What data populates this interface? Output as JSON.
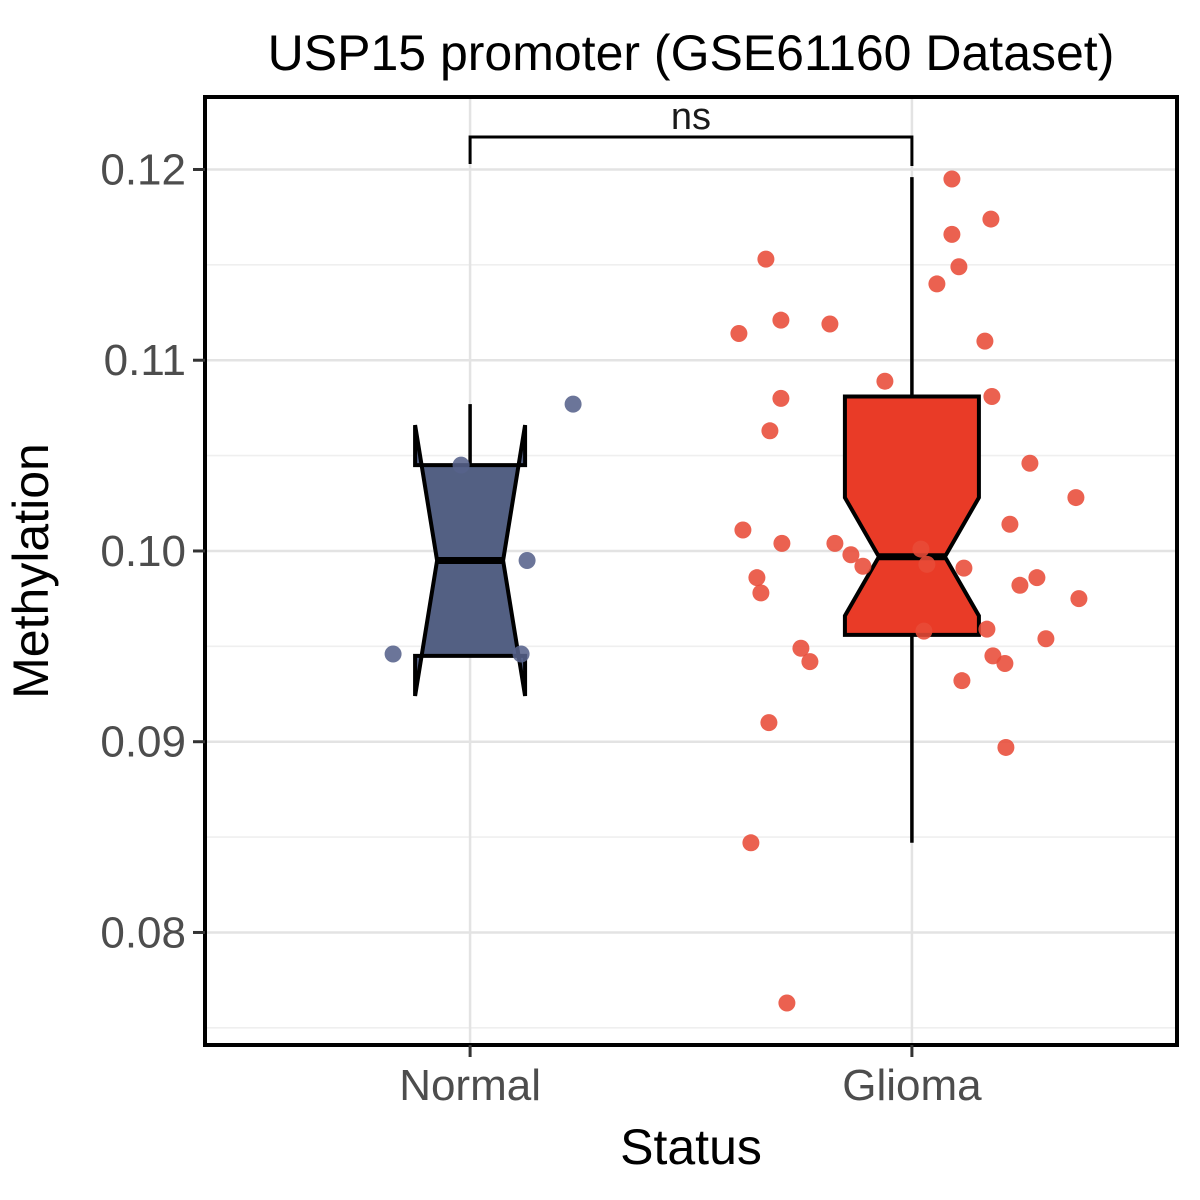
{
  "chart_data": {
    "type": "boxplot",
    "title": "USP15 promoter (GSE61160 Dataset)",
    "xlabel": "Status",
    "ylabel": "Methylation",
    "categories": [
      "Normal",
      "Glioma"
    ],
    "y_domain": [
      0.0741,
      0.1238
    ],
    "y_ticks": [
      {
        "value": 0.08,
        "label": "0.08"
      },
      {
        "value": 0.09,
        "label": "0.09"
      },
      {
        "value": 0.1,
        "label": "0.10"
      },
      {
        "value": 0.11,
        "label": "0.11"
      },
      {
        "value": 0.12,
        "label": "0.12"
      }
    ],
    "grid": {
      "major_color": "#e3e3e3",
      "minor_color": "#efefef"
    },
    "significance": {
      "label": "ns",
      "compares": [
        "Normal",
        "Glioma"
      ],
      "bar_value": 0.1217
    },
    "groups": [
      {
        "name": "Normal",
        "box_color": "#536083",
        "point_color": "#56628b",
        "stats": {
          "whisker_low": 0.0945,
          "q1": 0.0945,
          "median": 0.0995,
          "q3": 0.1045,
          "whisker_high": 0.1077,
          "notch_low": 0.0924,
          "notch_high": 0.1066
        },
        "points": [
          [
            -9,
            0.1045
          ],
          [
            103,
            0.1077
          ],
          [
            57,
            0.0995
          ],
          [
            -77,
            0.0946
          ],
          [
            51,
            0.0946
          ]
        ]
      },
      {
        "name": "Glioma",
        "box_color": "#e93b27",
        "point_color": "#e84b38",
        "stats": {
          "whisker_low": 0.0847,
          "q1": 0.0956,
          "median": 0.0997,
          "q3": 0.1081,
          "whisker_high": 0.1196,
          "notch_low": 0.0966,
          "notch_high": 0.1028
        },
        "points": [
          [
            40,
            0.1195
          ],
          [
            79,
            0.1174
          ],
          [
            40,
            0.1166
          ],
          [
            47,
            0.1149
          ],
          [
            25,
            0.114
          ],
          [
            -146,
            0.1153
          ],
          [
            -131,
            0.1121
          ],
          [
            -173,
            0.1114
          ],
          [
            -82,
            0.1119
          ],
          [
            73,
            0.111
          ],
          [
            -27,
            0.1089
          ],
          [
            -131,
            0.108
          ],
          [
            80,
            0.1081
          ],
          [
            -142,
            0.1063
          ],
          [
            118,
            0.1046
          ],
          [
            164,
            0.1028
          ],
          [
            98,
            0.1014
          ],
          [
            -169,
            0.1011
          ],
          [
            -130,
            0.1004
          ],
          [
            -77,
            0.1004
          ],
          [
            -61,
            0.0998
          ],
          [
            -49,
            0.0992
          ],
          [
            52,
            0.0991
          ],
          [
            15,
            0.0993
          ],
          [
            125,
            0.0986
          ],
          [
            108,
            0.0982
          ],
          [
            -155,
            0.0986
          ],
          [
            -151,
            0.0978
          ],
          [
            167,
            0.0975
          ],
          [
            9,
            0.1001
          ],
          [
            12,
            0.0958
          ],
          [
            75,
            0.0959
          ],
          [
            134,
            0.0954
          ],
          [
            81,
            0.0945
          ],
          [
            93,
            0.0941
          ],
          [
            50,
            0.0932
          ],
          [
            -111,
            0.0949
          ],
          [
            -102,
            0.0942
          ],
          [
            -143,
            0.091
          ],
          [
            94,
            0.0897
          ],
          [
            -161,
            0.0847
          ],
          [
            -125,
            0.0763
          ]
        ]
      }
    ]
  }
}
